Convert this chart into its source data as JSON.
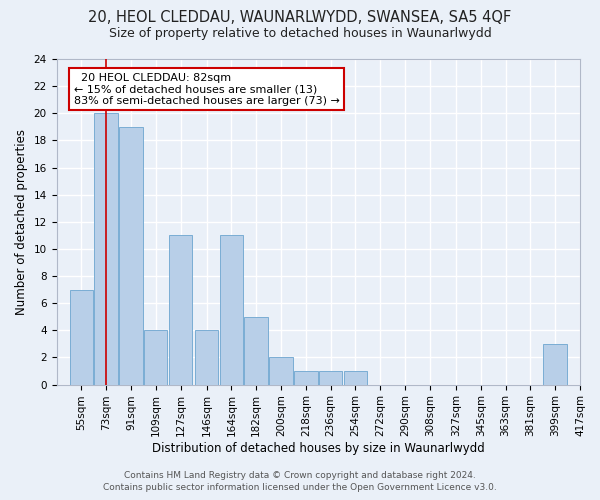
{
  "title": "20, HEOL CLEDDAU, WAUNARLWYDD, SWANSEA, SA5 4QF",
  "subtitle": "Size of property relative to detached houses in Waunarlwydd",
  "xlabel": "Distribution of detached houses by size in Waunarlwydd",
  "ylabel": "Number of detached properties",
  "bins": [
    55,
    73,
    91,
    109,
    127,
    146,
    164,
    182,
    200,
    218,
    236,
    254,
    272,
    290,
    308,
    327,
    345,
    363,
    381,
    399,
    417
  ],
  "values": [
    7,
    20,
    19,
    4,
    11,
    4,
    11,
    5,
    2,
    1,
    1,
    1,
    0,
    0,
    0,
    0,
    0,
    0,
    0,
    3,
    0
  ],
  "bar_color": "#b8cfe8",
  "bar_edge_color": "#7aadd4",
  "red_line_x": 82,
  "annotation_text": "  20 HEOL CLEDDAU: 82sqm  \n← 15% of detached houses are smaller (13)\n83% of semi-detached houses are larger (73) →",
  "annotation_box_color": "#ffffff",
  "annotation_box_edge": "#cc0000",
  "ylim": [
    0,
    24
  ],
  "yticks": [
    0,
    2,
    4,
    6,
    8,
    10,
    12,
    14,
    16,
    18,
    20,
    22,
    24
  ],
  "footer_line1": "Contains HM Land Registry data © Crown copyright and database right 2024.",
  "footer_line2": "Contains public sector information licensed under the Open Government Licence v3.0.",
  "background_color": "#eaf0f8",
  "grid_color": "#ffffff",
  "title_fontsize": 10.5,
  "subtitle_fontsize": 9,
  "axis_label_fontsize": 8.5,
  "tick_fontsize": 7.5,
  "annotation_fontsize": 8,
  "footer_fontsize": 6.5
}
